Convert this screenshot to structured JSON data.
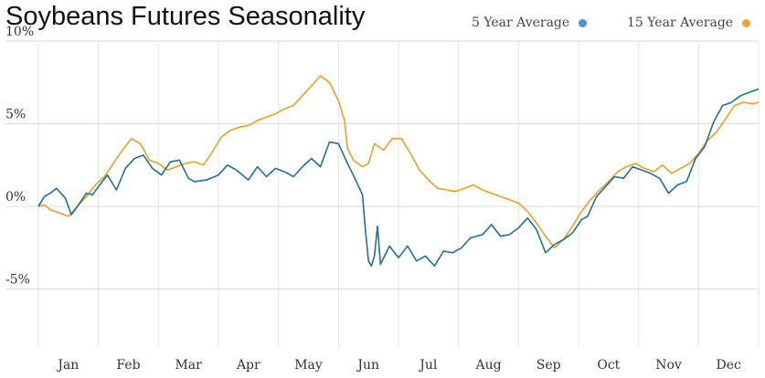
{
  "chart_data": {
    "type": "line",
    "title": "Soybeans Futures Seasonality",
    "xlabel": "",
    "ylabel": "",
    "ylim": [
      -8.5,
      10
    ],
    "y_ticks": [
      10,
      5,
      0,
      -5
    ],
    "y_tick_labels": [
      "10%",
      "5%",
      "0%",
      "-5%"
    ],
    "x_domain": [
      0,
      12
    ],
    "x_month_labels": [
      "Jan",
      "Feb",
      "Mar",
      "Apr",
      "May",
      "Jun",
      "Jul",
      "Aug",
      "Sep",
      "Oct",
      "Nov",
      "Dec"
    ],
    "grid": true,
    "legend_position": "top-right",
    "series": [
      {
        "name": "5 Year Average",
        "color": "#1f6f99",
        "legend_color": "#4a8fe0",
        "x": [
          0.0,
          0.1,
          0.2,
          0.3,
          0.45,
          0.55,
          0.65,
          0.8,
          0.9,
          1.0,
          1.15,
          1.3,
          1.45,
          1.6,
          1.75,
          1.9,
          2.05,
          2.2,
          2.35,
          2.5,
          2.6,
          2.8,
          3.0,
          3.15,
          3.3,
          3.5,
          3.65,
          3.8,
          3.95,
          4.1,
          4.25,
          4.4,
          4.55,
          4.7,
          4.85,
          5.0,
          5.15,
          5.3,
          5.4,
          5.45,
          5.5,
          5.55,
          5.6,
          5.65,
          5.7,
          5.85,
          6.0,
          6.15,
          6.3,
          6.45,
          6.6,
          6.75,
          6.9,
          7.05,
          7.2,
          7.4,
          7.55,
          7.7,
          7.85,
          8.0,
          8.15,
          8.3,
          8.45,
          8.6,
          8.75,
          8.9,
          9.05,
          9.15,
          9.3,
          9.45,
          9.6,
          9.75,
          9.9,
          10.05,
          10.2,
          10.35,
          10.5,
          10.65,
          10.8,
          10.95,
          11.1,
          11.25,
          11.4,
          11.55,
          11.7,
          11.85,
          12.0
        ],
        "values": [
          0.0,
          0.6,
          0.8,
          1.1,
          0.5,
          -0.5,
          0.0,
          0.8,
          0.7,
          1.2,
          1.9,
          1.0,
          2.3,
          2.9,
          3.1,
          2.3,
          1.9,
          2.7,
          2.8,
          1.7,
          1.5,
          1.6,
          1.9,
          2.5,
          2.2,
          1.6,
          2.4,
          1.8,
          2.3,
          2.1,
          1.8,
          2.4,
          2.9,
          2.4,
          3.9,
          3.8,
          2.6,
          1.5,
          0.7,
          -1.5,
          -3.3,
          -3.6,
          -3.0,
          -1.2,
          -3.5,
          -2.4,
          -3.1,
          -2.4,
          -3.3,
          -3.0,
          -3.6,
          -2.7,
          -2.8,
          -2.5,
          -1.9,
          -1.7,
          -1.1,
          -1.8,
          -1.7,
          -1.3,
          -0.7,
          -1.4,
          -2.8,
          -2.3,
          -2.0,
          -1.6,
          -0.8,
          -0.6,
          0.6,
          1.2,
          1.8,
          1.7,
          2.4,
          2.2,
          2.0,
          1.7,
          0.8,
          1.3,
          1.5,
          2.9,
          3.6,
          5.1,
          6.1,
          6.3,
          6.7,
          6.9,
          7.1
        ]
      },
      {
        "name": "15 Year Average",
        "color": "#e8a023",
        "legend_color": "#f0a22a",
        "x": [
          0.0,
          0.1,
          0.2,
          0.35,
          0.5,
          0.65,
          0.8,
          0.95,
          1.1,
          1.25,
          1.4,
          1.55,
          1.7,
          1.85,
          2.0,
          2.15,
          2.3,
          2.45,
          2.6,
          2.75,
          2.9,
          3.05,
          3.2,
          3.35,
          3.5,
          3.65,
          3.8,
          3.95,
          4.1,
          4.25,
          4.4,
          4.55,
          4.7,
          4.85,
          5.0,
          5.1,
          5.15,
          5.25,
          5.4,
          5.5,
          5.6,
          5.75,
          5.9,
          6.05,
          6.2,
          6.35,
          6.5,
          6.65,
          6.8,
          6.95,
          7.1,
          7.25,
          7.4,
          7.55,
          7.7,
          7.85,
          8.0,
          8.15,
          8.3,
          8.45,
          8.6,
          8.75,
          8.9,
          9.05,
          9.2,
          9.35,
          9.5,
          9.65,
          9.8,
          9.95,
          10.1,
          10.25,
          10.4,
          10.55,
          10.7,
          10.85,
          11.0,
          11.15,
          11.3,
          11.45,
          11.6,
          11.75,
          11.9,
          12.0
        ],
        "values": [
          0.0,
          0.1,
          -0.2,
          -0.4,
          -0.6,
          0.0,
          0.6,
          1.3,
          1.8,
          2.6,
          3.4,
          4.1,
          3.8,
          2.8,
          2.6,
          2.2,
          2.4,
          2.6,
          2.7,
          2.5,
          3.3,
          4.2,
          4.6,
          4.8,
          4.9,
          5.2,
          5.4,
          5.6,
          5.9,
          6.1,
          6.7,
          7.3,
          7.9,
          7.5,
          6.4,
          5.2,
          3.5,
          2.8,
          2.4,
          2.6,
          3.8,
          3.4,
          4.1,
          4.1,
          3.2,
          2.2,
          1.6,
          1.1,
          1.0,
          0.9,
          1.1,
          1.3,
          1.0,
          0.8,
          0.6,
          0.4,
          0.2,
          -0.3,
          -1.0,
          -1.8,
          -2.5,
          -2.0,
          -1.2,
          -0.3,
          0.4,
          1.0,
          1.5,
          2.1,
          2.4,
          2.6,
          2.3,
          2.1,
          2.5,
          2.0,
          2.3,
          2.6,
          3.2,
          4.0,
          4.5,
          5.3,
          6.1,
          6.3,
          6.2,
          6.3
        ]
      }
    ]
  }
}
